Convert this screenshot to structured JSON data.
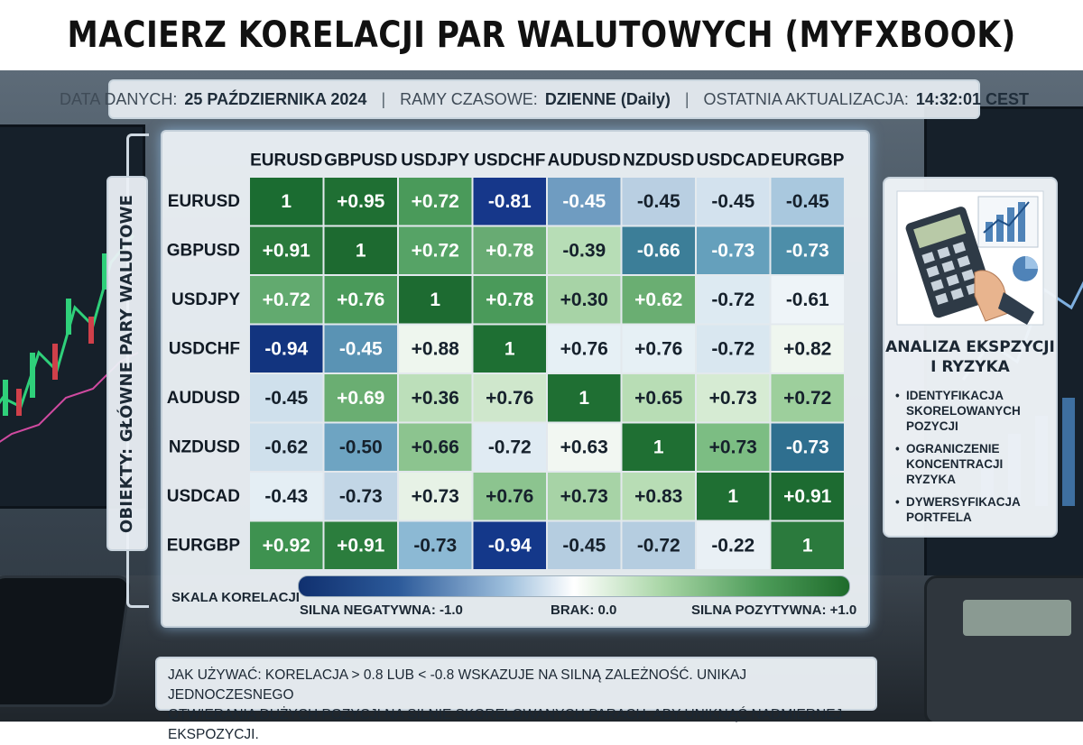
{
  "title": "MACIERZ KORELACJI PAR WALUTOWYCH (MYFXBOOK)",
  "info_bar": {
    "data_label": "DATA DANYCH:",
    "data_value": "25 PAŹDZIERNIKA 2024",
    "timeframe_label": "RAMY CZASOWE:",
    "timeframe_value": "DZIENNE (Daily)",
    "update_label": "OSTATNIA AKTUALIZACJA:",
    "update_value": "14:32:01 CEST",
    "separator": "|"
  },
  "axis_label": "OBIEKTY: GŁÓWNE PARY WALUTOWE",
  "chart_data": {
    "type": "heatmap",
    "columns": [
      "EURUSD",
      "GBPUSD",
      "USDJPY",
      "USDCHF",
      "AUDUSD",
      "NZDUSD",
      "USDCAD",
      "EURGBP"
    ],
    "rows": [
      "EURUSD",
      "GBPUSD",
      "USDJPY",
      "USDCHF",
      "AUDUSD",
      "NZDUSD",
      "USDCAD",
      "EURGBP"
    ],
    "values": [
      [
        1,
        0.95,
        0.72,
        -0.81,
        -0.45,
        -0.45,
        -0.45,
        -0.45
      ],
      [
        0.91,
        1,
        0.72,
        0.78,
        -0.39,
        -0.66,
        -0.73,
        -0.73
      ],
      [
        0.72,
        0.76,
        1,
        0.78,
        0.3,
        0.62,
        -0.72,
        -0.61
      ],
      [
        -0.94,
        -0.45,
        0.88,
        1,
        0.76,
        0.76,
        -0.72,
        0.82
      ],
      [
        -0.45,
        0.69,
        0.36,
        0.76,
        1,
        0.65,
        0.73,
        0.72
      ],
      [
        -0.62,
        -0.5,
        0.66,
        -0.72,
        0.63,
        1,
        0.73,
        -0.73
      ],
      [
        -0.43,
        -0.73,
        0.73,
        0.76,
        0.73,
        0.83,
        1,
        0.91
      ],
      [
        0.92,
        0.91,
        -0.73,
        -0.94,
        -0.45,
        -0.72,
        -0.22,
        1
      ]
    ],
    "labels": [
      [
        "1",
        "+0.95",
        "+0.72",
        "-0.81",
        "-0.45",
        "-0.45",
        "-0.45",
        "-0.45"
      ],
      [
        "+0.91",
        "1",
        "+0.72",
        "+0.78",
        "-0.39",
        "-0.66",
        "-0.73",
        "-0.73"
      ],
      [
        "+0.72",
        "+0.76",
        "1",
        "+0.78",
        "+0.30",
        "+0.62",
        "-0.72",
        "-0.61"
      ],
      [
        "-0.94",
        "-0.45",
        "+0.88",
        "1",
        "+0.76",
        "+0.76",
        "-0.72",
        "+0.82"
      ],
      [
        "-0.45",
        "+0.69",
        "+0.36",
        "+0.76",
        "1",
        "+0.65",
        "+0.73",
        "+0.72"
      ],
      [
        "-0.62",
        "-0.50",
        "+0.66",
        "-0.72",
        "+0.63",
        "1",
        "+0.73",
        "-0.73"
      ],
      [
        "-0.43",
        "-0.73",
        "+0.73",
        "+0.76",
        "+0.73",
        "+0.83",
        "1",
        "+0.91"
      ],
      [
        "+0.92",
        "+0.91",
        "-0.73",
        "-0.94",
        "-0.45",
        "-0.72",
        "-0.22",
        "1"
      ]
    ],
    "fill_colors": [
      [
        "#1b6c31",
        "#1f6f33",
        "#4a9a5a",
        "#16378a",
        "#6f9cc1",
        "#b9cfe2",
        "#d3e2ee",
        "#a9c8de"
      ],
      [
        "#2a7a3c",
        "#1d6a30",
        "#56a366",
        "#68ab73",
        "#b7ddb6",
        "#3c7e98",
        "#65a0bc",
        "#4d8ea9"
      ],
      [
        "#62aa6f",
        "#4a9a5a",
        "#1d6b31",
        "#4a9a5a",
        "#a7d3a6",
        "#6aae72",
        "#ddeaf2",
        "#eef4f8"
      ],
      [
        "#12347f",
        "#5a93b4",
        "#eef6ee",
        "#1e6f33",
        "#e6f0f5",
        "#e6f0f5",
        "#d9e7f0",
        "#eff6ef"
      ],
      [
        "#cfe0ec",
        "#6aae72",
        "#bcdfba",
        "#cfe7cc",
        "#1f6f33",
        "#b8ddb5",
        "#d6ebd3",
        "#9dcf9c"
      ],
      [
        "#cfe0ec",
        "#6ea4c2",
        "#8cc48f",
        "#e0ebf3",
        "#f2f7f2",
        "#1f6f33",
        "#7cbd83",
        "#2f6f8f"
      ],
      [
        "#e4eef4",
        "#c2d6e6",
        "#e7f2e6",
        "#8cc48f",
        "#a7d3a6",
        "#b8ddb5",
        "#1f6f33",
        "#1d6b31"
      ],
      [
        "#3e9250",
        "#2b7d3d",
        "#8cb9d4",
        "#14388a",
        "#b5cde0",
        "#b5cde0",
        "#e9f0f5",
        "#2b7a3d"
      ]
    ],
    "scale": {
      "title": "SKALA KORELACJI",
      "negative": "SILNA NEGATYWNA: -1.0",
      "zero": "BRAK: 0.0",
      "positive": "SILNA POZYTYWNA: +1.0",
      "range": [
        -1.0,
        1.0
      ]
    }
  },
  "side_panel": {
    "title_line1": "ANALIZA EKSPZYCJI",
    "title_line2": "I RYZYKA",
    "items": [
      "IDENTYFIKACJA SKORELOWANYCH POZYCJI",
      "OGRANICZENIE KONCENTRACJI RYZYKA",
      "DYWERSYFIKACJA PORTFELA"
    ]
  },
  "note": {
    "line1": "JAK UŻYWAĆ: KORELACJA > 0.8 LUB < -0.8 WSKAZUJE NA SILNĄ ZALEŻNOŚĆ. UNIKAJ JEDNOCZESNEGO",
    "line2": "OTWIERANIA DUŻYCH POZYCJI NA SILNIE SKORELOWANYCH PARACH, ABY UNIKNĄĆ NADMIERNEJ EKSPOZYCJI."
  }
}
